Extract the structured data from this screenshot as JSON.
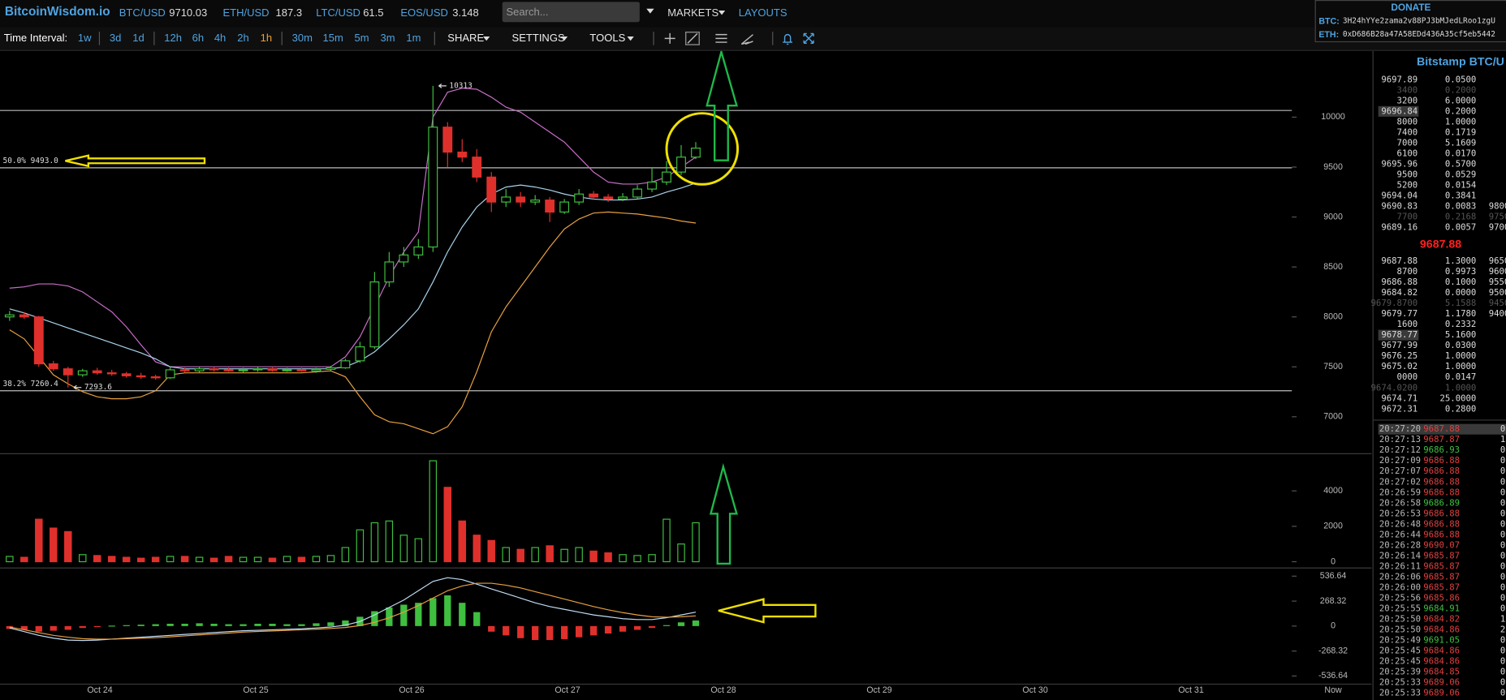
{
  "header": {
    "logo": "BitcoinWisdom.io",
    "tickers": [
      {
        "pair": "BTC/USD",
        "price": 9710.03
      },
      {
        "pair": "ETH/USD",
        "price": 187.3
      },
      {
        "pair": "LTC/USD",
        "price": 61.5
      },
      {
        "pair": "EOS/USD",
        "price": 3.148
      }
    ],
    "search_placeholder": "Search...",
    "menus": [
      "MARKETS",
      "LAYOUTS"
    ],
    "donate": {
      "title": "DONATE",
      "addresses": [
        {
          "coin": "BTC:",
          "address": "3H24hYYe2zama2v88PJ3bMJedLRoo1zgU"
        },
        {
          "coin": "ETH:",
          "address": "0xD686B28a47A58EDd436A35cf5eb5442"
        }
      ]
    }
  },
  "toolbar": {
    "label": "Time Interval:",
    "intervals": [
      "1w",
      "3d",
      "1d",
      "12h",
      "6h",
      "4h",
      "2h",
      "1h",
      "30m",
      "15m",
      "5m",
      "3m",
      "1m"
    ],
    "active_interval": "1h",
    "menus": [
      "SHARE",
      "SETTINGS",
      "TOOLS"
    ]
  },
  "chart_data": [
    {
      "type": "candlestick",
      "open": [
        8000,
        8020,
        8000,
        7530,
        7480,
        7420,
        7460,
        7440,
        7430,
        7410,
        7400,
        7390,
        7470,
        7460,
        7480,
        7470,
        7460,
        7470,
        7480,
        7465,
        7470,
        7460,
        7475,
        7490,
        7560,
        7700,
        8350,
        8550,
        8620,
        8700,
        9900,
        9650,
        9600,
        9400,
        9150,
        9200,
        9150,
        9170,
        9050,
        9150,
        9230,
        9200,
        9180,
        9200,
        9280,
        9350,
        9450,
        9600
      ],
      "high": [
        8060,
        8050,
        8010,
        7560,
        7500,
        7480,
        7490,
        7470,
        7450,
        7440,
        7420,
        7500,
        7490,
        7500,
        7500,
        7490,
        7490,
        7500,
        7500,
        7490,
        7490,
        7490,
        7510,
        7580,
        7750,
        8450,
        8650,
        8700,
        8780,
        10313,
        9950,
        9780,
        9680,
        9450,
        9280,
        9250,
        9220,
        9200,
        9180,
        9280,
        9260,
        9230,
        9240,
        9320,
        9500,
        9560,
        9720,
        9750
      ],
      "low": [
        7960,
        7980,
        7500,
        7460,
        7293.6,
        7400,
        7420,
        7410,
        7390,
        7380,
        7370,
        7380,
        7440,
        7440,
        7450,
        7450,
        7440,
        7450,
        7450,
        7450,
        7450,
        7440,
        7460,
        7480,
        7540,
        7680,
        8300,
        8500,
        8580,
        8650,
        9500,
        9550,
        9350,
        9050,
        9100,
        9100,
        9120,
        8950,
        9030,
        9120,
        9170,
        9150,
        9160,
        9180,
        9250,
        9320,
        9420,
        9580
      ],
      "close": [
        8020,
        8000,
        7530,
        7480,
        7420,
        7460,
        7440,
        7430,
        7410,
        7400,
        7390,
        7470,
        7460,
        7480,
        7470,
        7460,
        7470,
        7480,
        7465,
        7470,
        7460,
        7475,
        7490,
        7560,
        7700,
        8350,
        8550,
        8620,
        8700,
        9900,
        9650,
        9600,
        9400,
        9150,
        9200,
        9150,
        9170,
        9050,
        9150,
        9230,
        9200,
        9180,
        9200,
        9280,
        9350,
        9450,
        9600,
        9690
      ],
      "bb_upper": [
        8288,
        8300,
        8330,
        8330,
        8310,
        8250,
        8150,
        8050,
        7900,
        7720,
        7550,
        7500,
        7500,
        7500,
        7500,
        7500,
        7500,
        7500,
        7500,
        7500,
        7500,
        7500,
        7500,
        7600,
        7800,
        8100,
        8400,
        8650,
        8850,
        10000,
        10250,
        10290,
        10280,
        10200,
        10100,
        10050,
        9950,
        9850,
        9750,
        9600,
        9450,
        9350,
        9330,
        9330,
        9350,
        9400,
        9500,
        9600
      ],
      "bb_middle": [
        8080,
        8040,
        7990,
        7940,
        7890,
        7840,
        7790,
        7740,
        7690,
        7640,
        7580,
        7500,
        7480,
        7480,
        7480,
        7480,
        7480,
        7480,
        7480,
        7480,
        7480,
        7480,
        7480,
        7500,
        7560,
        7650,
        7780,
        7920,
        8080,
        8350,
        8650,
        8900,
        9100,
        9230,
        9300,
        9320,
        9300,
        9270,
        9230,
        9200,
        9180,
        9170,
        9170,
        9180,
        9200,
        9250,
        9290,
        9340
      ],
      "bb_lower": [
        7870,
        7780,
        7600,
        7420,
        7330,
        7250,
        7200,
        7180,
        7180,
        7200,
        7260,
        7420,
        7440,
        7440,
        7440,
        7440,
        7440,
        7440,
        7440,
        7440,
        7440,
        7450,
        7460,
        7400,
        7200,
        7020,
        6950,
        6930,
        6880,
        6830,
        6900,
        7100,
        7450,
        7850,
        8100,
        8300,
        8500,
        8700,
        8880,
        8980,
        9040,
        9050,
        9040,
        9030,
        9010,
        8990,
        8960,
        8940
      ],
      "bb_colors": [
        "#c86ec8",
        "#a8d4ec",
        "#e8a040"
      ],
      "up_color": "#3fbf3f",
      "down_color": "#e0302c",
      "ylim": [
        6635,
        10673
      ],
      "yticks": [
        7000,
        7500,
        8000,
        8500,
        9000,
        9500,
        10000
      ],
      "levels": [
        {
          "value": 9493.0,
          "label": "50.0% 9493.0"
        },
        {
          "value": 7260.4,
          "label": "38.2% 7260.4"
        }
      ],
      "lines": [
        10067
      ]
    },
    {
      "type": "bar",
      "values": [
        300,
        250,
        2400,
        1900,
        1700,
        400,
        350,
        300,
        250,
        200,
        250,
        300,
        300,
        250,
        200,
        300,
        250,
        250,
        200,
        300,
        250,
        300,
        350,
        800,
        1800,
        2200,
        2300,
        1500,
        1300,
        5700,
        4200,
        2300,
        1500,
        1200,
        800,
        700,
        800,
        900,
        700,
        800,
        600,
        500,
        400,
        350,
        400,
        2400,
        1000,
        2200
      ],
      "ylim": [
        0,
        5800
      ],
      "yticks": [
        0,
        2000,
        4000
      ]
    },
    {
      "type": "macd",
      "histogram": [
        -30,
        -40,
        -60,
        -50,
        -40,
        -20,
        -10,
        5,
        10,
        15,
        20,
        25,
        25,
        30,
        25,
        20,
        20,
        25,
        25,
        20,
        20,
        30,
        40,
        60,
        100,
        160,
        200,
        230,
        250,
        300,
        330,
        250,
        150,
        -60,
        -100,
        -130,
        -150,
        -150,
        -140,
        -120,
        -100,
        -80,
        -60,
        -40,
        -20,
        10,
        40,
        60
      ],
      "macd": [
        -20,
        -60,
        -100,
        -130,
        -150,
        -155,
        -150,
        -140,
        -130,
        -120,
        -110,
        -100,
        -90,
        -80,
        -70,
        -60,
        -50,
        -45,
        -40,
        -35,
        -30,
        -20,
        -10,
        10,
        50,
        120,
        200,
        280,
        380,
        480,
        520,
        500,
        450,
        400,
        350,
        300,
        250,
        210,
        180,
        150,
        120,
        100,
        80,
        70,
        70,
        90,
        120,
        150
      ],
      "signal": [
        -10,
        -40,
        -70,
        -100,
        -120,
        -135,
        -140,
        -140,
        -135,
        -130,
        -125,
        -115,
        -105,
        -95,
        -85,
        -75,
        -65,
        -58,
        -52,
        -46,
        -40,
        -34,
        -26,
        -15,
        5,
        40,
        90,
        150,
        220,
        300,
        380,
        430,
        460,
        460,
        440,
        410,
        370,
        330,
        290,
        250,
        210,
        175,
        145,
        120,
        100,
        95,
        100,
        110
      ],
      "line_colors": [
        "#c0dcf4",
        "#e8a040"
      ],
      "up_color": "#3fbf3f",
      "down_color": "#e0302c",
      "ylim": [
        -619,
        609
      ],
      "yticks": [
        536.64,
        268.32,
        0,
        -268.32,
        -536.64
      ]
    }
  ],
  "x_axis": {
    "labels": [
      "Oct 24",
      "Oct 25",
      "Oct 26",
      "Oct 27",
      "Oct 28",
      "Oct 29",
      "Oct 30",
      "Oct 31",
      "Now"
    ]
  },
  "order_book": {
    "title": "Bitstamp BTC/U",
    "asks": [
      {
        "cells": [
          "9697.89",
          "0.0500"
        ]
      },
      {
        "cells": [
          "3400",
          "0.2000"
        ],
        "style": "dim"
      },
      {
        "cells": [
          "3200",
          "6.0000"
        ]
      },
      {
        "cells": [
          "9696.84",
          "0.2000"
        ],
        "style": "highlight"
      },
      {
        "cells": [
          "8000",
          "1.0000"
        ]
      },
      {
        "cells": [
          "7400",
          "0.1719"
        ]
      },
      {
        "cells": [
          "7000",
          "5.1609"
        ]
      },
      {
        "cells": [
          "6100",
          "0.0170"
        ]
      },
      {
        "cells": [
          "9695.96",
          "0.5700"
        ]
      },
      {
        "cells": [
          "9500",
          "0.0529"
        ]
      },
      {
        "cells": [
          "5200",
          "0.0154"
        ]
      },
      {
        "cells": [
          "9694.04",
          "0.3841"
        ]
      },
      {
        "cells": [
          "9690.83",
          "0.0083",
          "9800"
        ]
      },
      {
        "cells": [
          "7700",
          "0.2168",
          "9750"
        ],
        "style": "dim"
      },
      {
        "cells": [
          "9689.16",
          "0.0057",
          "9700"
        ]
      }
    ],
    "last_price": "9687.88",
    "bids": [
      {
        "cells": [
          "9687.88",
          "1.3000",
          "9650"
        ]
      },
      {
        "cells": [
          "8700",
          "0.9973",
          "9600"
        ]
      },
      {
        "cells": [
          "9686.88",
          "0.1000",
          "9550"
        ]
      },
      {
        "cells": [
          "9684.82",
          "0.0000",
          "9500"
        ]
      },
      {
        "cells": [
          "9679.8700",
          "5.1588",
          "9450"
        ],
        "style": "dim"
      },
      {
        "cells": [
          "9679.77",
          "1.1780",
          "9400"
        ]
      },
      {
        "cells": [
          "1600",
          "0.2332"
        ]
      },
      {
        "cells": [
          "9678.77",
          "5.1600"
        ],
        "style": "highlight"
      },
      {
        "cells": [
          "9677.99",
          "0.0300"
        ]
      },
      {
        "cells": [
          "9676.25",
          "1.0000"
        ]
      },
      {
        "cells": [
          "9675.02",
          "1.0000"
        ]
      },
      {
        "cells": [
          "0000",
          "0.0147"
        ]
      },
      {
        "cells": [
          "9674.0200",
          "1.0000"
        ],
        "style": "dim"
      },
      {
        "cells": [
          "9674.71",
          "25.0000"
        ]
      },
      {
        "cells": [
          "9672.31",
          "0.2800"
        ]
      }
    ]
  },
  "trades": [
    {
      "time": "20:27:20",
      "price": "9687.88",
      "amount": "0",
      "color": "#e04040",
      "style": "highlight"
    },
    {
      "time": "20:27:13",
      "price": "9687.87",
      "amount": "1",
      "color": "#e04040"
    },
    {
      "time": "20:27:12",
      "price": "9686.93",
      "amount": "0",
      "color": "#40c040"
    },
    {
      "time": "20:27:09",
      "price": "9686.88",
      "amount": "0",
      "color": "#e04040"
    },
    {
      "time": "20:27:07",
      "price": "9686.88",
      "amount": "0",
      "color": "#e04040"
    },
    {
      "time": "20:27:02",
      "price": "9686.88",
      "amount": "0",
      "color": "#e04040"
    },
    {
      "time": "20:26:59",
      "price": "9686.88",
      "amount": "0",
      "color": "#e04040"
    },
    {
      "time": "20:26:58",
      "price": "9686.89",
      "amount": "0",
      "color": "#40c040"
    },
    {
      "time": "20:26:53",
      "price": "9686.88",
      "amount": "0",
      "color": "#e04040"
    },
    {
      "time": "20:26:48",
      "price": "9686.88",
      "amount": "0",
      "color": "#e04040"
    },
    {
      "time": "20:26:44",
      "price": "9686.88",
      "amount": "0",
      "color": "#e04040"
    },
    {
      "time": "20:26:28",
      "price": "9690.07",
      "amount": "0",
      "color": "#e04040"
    },
    {
      "time": "20:26:14",
      "price": "9685.87",
      "amount": "0",
      "color": "#e04040"
    },
    {
      "time": "20:26:11",
      "price": "9685.87",
      "amount": "0",
      "color": "#e04040"
    },
    {
      "time": "20:26:06",
      "price": "9685.87",
      "amount": "0",
      "color": "#e04040"
    },
    {
      "time": "20:26:00",
      "price": "9685.87",
      "amount": "0",
      "color": "#e04040"
    },
    {
      "time": "20:25:56",
      "price": "9685.86",
      "amount": "0",
      "color": "#e04040"
    },
    {
      "time": "20:25:55",
      "price": "9684.91",
      "amount": "0",
      "color": "#40c040"
    },
    {
      "time": "20:25:50",
      "price": "9684.82",
      "amount": "1",
      "color": "#e04040"
    },
    {
      "time": "20:25:50",
      "price": "9684.86",
      "amount": "2",
      "color": "#e04040"
    },
    {
      "time": "20:25:49",
      "price": "9691.05",
      "amount": "0",
      "color": "#40c040"
    },
    {
      "time": "20:25:45",
      "price": "9684.86",
      "amount": "0",
      "color": "#e04040"
    },
    {
      "time": "20:25:45",
      "price": "9684.86",
      "amount": "0",
      "color": "#e04040"
    },
    {
      "time": "20:25:39",
      "price": "9684.85",
      "amount": "0",
      "color": "#e04040"
    },
    {
      "time": "20:25:33",
      "price": "9689.06",
      "amount": "0",
      "color": "#e04040"
    },
    {
      "time": "20:25:33",
      "price": "9689.06",
      "amount": "0",
      "color": "#e04040"
    }
  ]
}
